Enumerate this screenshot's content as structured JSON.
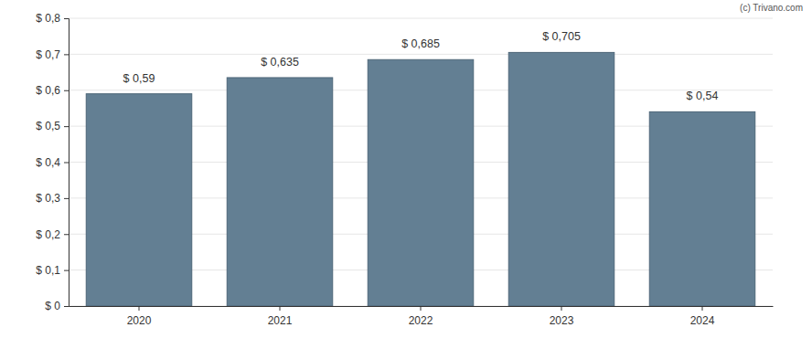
{
  "chart_data": {
    "type": "bar",
    "annotations": [
      "(c) Trivano.com"
    ],
    "categories": [
      "2020",
      "2021",
      "2022",
      "2023",
      "2024"
    ],
    "values": [
      0.59,
      0.635,
      0.685,
      0.705,
      0.54
    ],
    "value_labels": [
      "$ 0,59",
      "$ 0,635",
      "$ 0,685",
      "$ 0,705",
      "$ 0,54"
    ],
    "data_labels": true,
    "color": "#637f93",
    "ylim": [
      0,
      0.8
    ],
    "yticks": [
      {
        "value": 0,
        "label": "$ 0"
      },
      {
        "value": 0.1,
        "label": "$ 0,1"
      },
      {
        "value": 0.2,
        "label": "$ 0,2"
      },
      {
        "value": 0.3,
        "label": "$ 0,3"
      },
      {
        "value": 0.4,
        "label": "$ 0,4"
      },
      {
        "value": 0.5,
        "label": "$ 0,5"
      },
      {
        "value": 0.6,
        "label": "$ 0,6"
      },
      {
        "value": 0.7,
        "label": "$ 0,7"
      },
      {
        "value": 0.8,
        "label": "$ 0,8"
      }
    ],
    "grid": true
  }
}
